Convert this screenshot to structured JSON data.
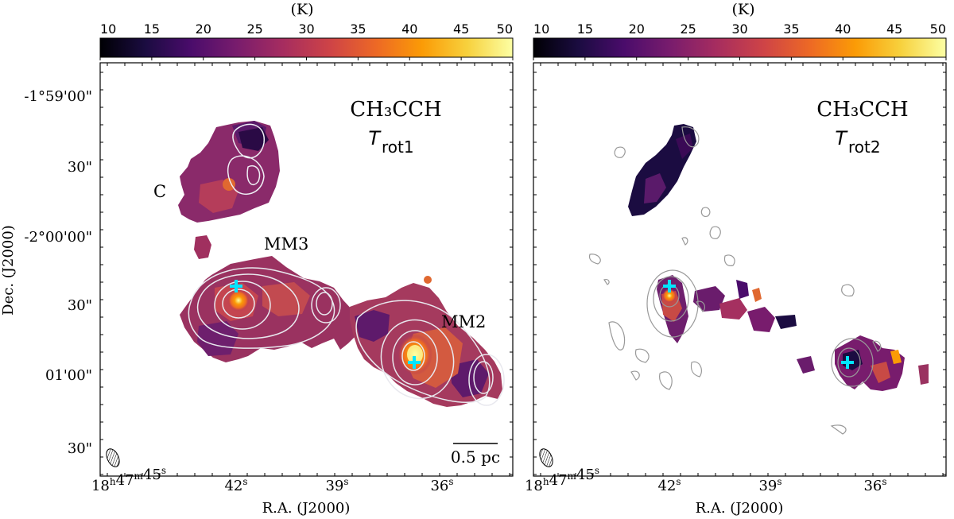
{
  "colorbar": {
    "unit_label": "(K)",
    "ticks": [
      "10",
      "15",
      "20",
      "25",
      "30",
      "35",
      "40",
      "45",
      "50"
    ],
    "colormap": [
      "#000004",
      "#1b0c41",
      "#4a0c6b",
      "#781c6d",
      "#a52c60",
      "#cf4446",
      "#ed6925",
      "#fb9b06",
      "#f7d13d",
      "#fcffa4"
    ]
  },
  "panels": [
    {
      "molecule": "CH₃CCH",
      "param_main": "T",
      "param_sub": "rot1",
      "y_ticks": [
        "-1°59'00\"",
        "30\"",
        "-2°00'00\"",
        "30\"",
        "01'00\"",
        "30\""
      ],
      "x_ticks": [
        "18h47m45s",
        "42s",
        "39s",
        "36s"
      ],
      "ylabel": "Dec. (J2000)",
      "xlabel": "R.A. (J2000)",
      "labels": {
        "c": "C",
        "mm3": "MM3",
        "mm2": "MM2"
      },
      "scalebar": "0.5 pc"
    },
    {
      "molecule": "CH₃CCH",
      "param_main": "T",
      "param_sub": "rot2",
      "x_ticks": [
        "18h47m45s",
        "42s",
        "39s",
        "36s"
      ],
      "xlabel": "R.A. (J2000)"
    }
  ],
  "colors": {
    "marker": "#00e5ff",
    "contour_left": "#e8e8ee",
    "contour_right": "#999999"
  }
}
